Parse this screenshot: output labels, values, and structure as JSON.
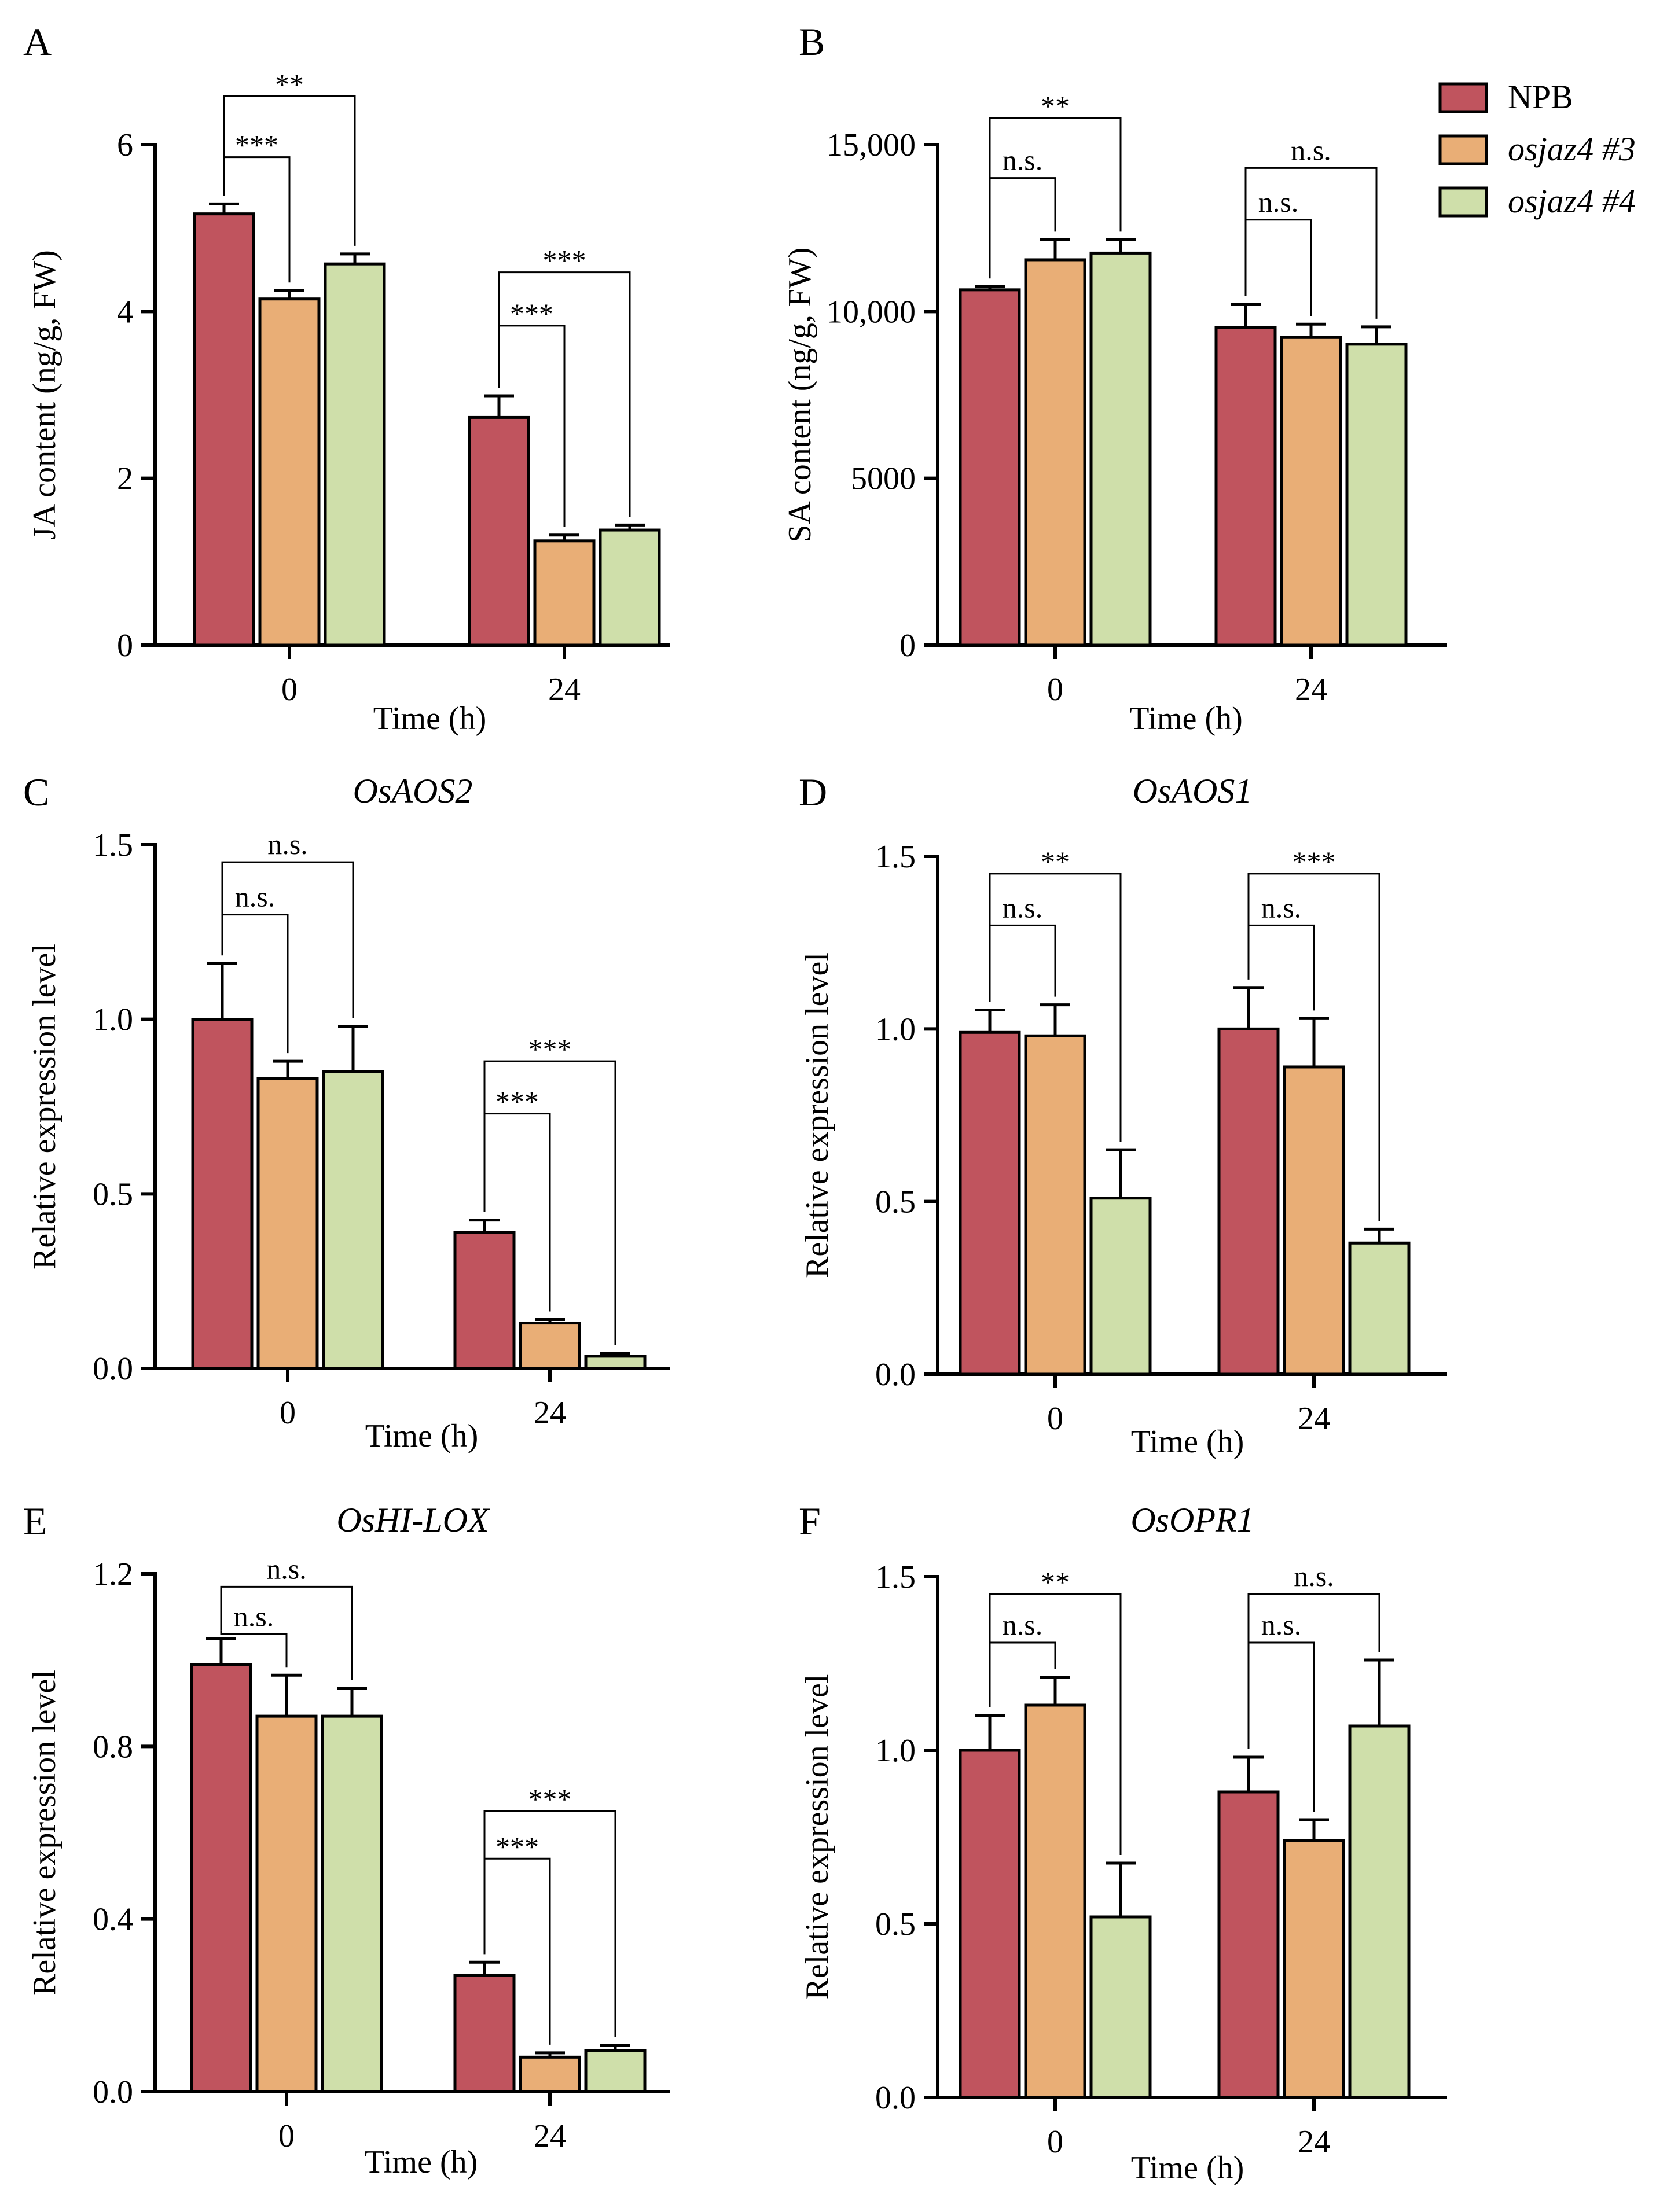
{
  "colors": {
    "NPB": "#c0545e",
    "osjaz4 #3": "#e9ae76",
    "osjaz4 #4": "#cfdfaa",
    "axis": "#000000"
  },
  "legend": {
    "items": [
      {
        "label": "NPB",
        "italic": false
      },
      {
        "label": "osjaz4 #3",
        "italic": true
      },
      {
        "label": "osjaz4 #4",
        "italic": true
      }
    ]
  },
  "chart_data": [
    {
      "panel": "A",
      "type": "bar",
      "title": "",
      "xlabel": "Time (h)",
      "ylabel": "JA content (ng/g, FW)",
      "ylim": [
        0,
        6
      ],
      "yticks": [
        "0",
        "2",
        "4",
        "6"
      ],
      "ytick_values": [
        0,
        2,
        4,
        6
      ],
      "categories": [
        "0",
        "24"
      ],
      "series": [
        {
          "name": "NPB",
          "values": [
            5.17,
            2.73
          ],
          "errors": [
            0.12,
            0.26
          ]
        },
        {
          "name": "osjaz4 #3",
          "values": [
            4.15,
            1.25
          ],
          "errors": [
            0.1,
            0.07
          ]
        },
        {
          "name": "osjaz4 #4",
          "values": [
            4.57,
            1.38
          ],
          "errors": [
            0.12,
            0.06
          ]
        }
      ],
      "significance": [
        {
          "group": 0,
          "target": 1,
          "label": "***",
          "level": 5.85
        },
        {
          "group": 0,
          "target": 2,
          "label": "**",
          "level": 6.58
        },
        {
          "group": 1,
          "target": 1,
          "label": "***",
          "level": 3.83
        },
        {
          "group": 1,
          "target": 2,
          "label": "***",
          "level": 4.47
        }
      ]
    },
    {
      "panel": "B",
      "type": "bar",
      "title": "",
      "xlabel": "Time (h)",
      "ylabel": "SA content (ng/g, FW)",
      "ylim": [
        0,
        15000
      ],
      "yticks": [
        "0",
        "5000",
        "10,000",
        "15,000"
      ],
      "ytick_values": [
        0,
        5000,
        10000,
        15000
      ],
      "categories": [
        "0",
        "24"
      ],
      "series": [
        {
          "name": "NPB",
          "values": [
            10650,
            9520
          ],
          "errors": [
            100,
            700
          ]
        },
        {
          "name": "osjaz4 #3",
          "values": [
            11550,
            9220
          ],
          "errors": [
            600,
            400
          ]
        },
        {
          "name": "osjaz4 #4",
          "values": [
            11750,
            9020
          ],
          "errors": [
            400,
            520
          ]
        }
      ],
      "significance": [
        {
          "group": 0,
          "target": 1,
          "label": "n.s.",
          "level": 14000
        },
        {
          "group": 0,
          "target": 2,
          "label": "**",
          "level": 15800
        },
        {
          "group": 1,
          "target": 1,
          "label": "n.s.",
          "level": 12750
        },
        {
          "group": 1,
          "target": 2,
          "label": "n.s.",
          "level": 14300
        }
      ]
    },
    {
      "panel": "C",
      "type": "bar",
      "title": "OsAOS2",
      "xlabel": "Time (h)",
      "ylabel": "Relative expression level",
      "ylim": [
        0,
        1.5
      ],
      "yticks": [
        "0.0",
        "0.5",
        "1.0",
        "1.5"
      ],
      "ytick_values": [
        0,
        0.5,
        1.0,
        1.5
      ],
      "categories": [
        "0",
        "24"
      ],
      "series": [
        {
          "name": "NPB",
          "values": [
            1.0,
            0.39
          ],
          "errors": [
            0.16,
            0.035
          ]
        },
        {
          "name": "osjaz4 #3",
          "values": [
            0.83,
            0.13
          ],
          "errors": [
            0.05,
            0.01
          ]
        },
        {
          "name": "osjaz4 #4",
          "values": [
            0.85,
            0.035
          ],
          "errors": [
            0.13,
            0.008
          ]
        }
      ],
      "significance": [
        {
          "group": 0,
          "target": 1,
          "label": "n.s.",
          "level": 1.3
        },
        {
          "group": 0,
          "target": 2,
          "label": "n.s.",
          "level": 1.45
        },
        {
          "group": 1,
          "target": 1,
          "label": "***",
          "level": 0.73
        },
        {
          "group": 1,
          "target": 2,
          "label": "***",
          "level": 0.88
        }
      ]
    },
    {
      "panel": "D",
      "type": "bar",
      "title": "OsAOS1",
      "xlabel": "Time (h)",
      "ylabel": "Relative expression level",
      "ylim": [
        0,
        1.5
      ],
      "yticks": [
        "0.0",
        "0.5",
        "1.0",
        "1.5"
      ],
      "ytick_values": [
        0,
        0.5,
        1.0,
        1.5
      ],
      "categories": [
        "0",
        "24"
      ],
      "series": [
        {
          "name": "NPB",
          "values": [
            0.99,
            1.0
          ],
          "errors": [
            0.065,
            0.12
          ]
        },
        {
          "name": "osjaz4 #3",
          "values": [
            0.98,
            0.89
          ],
          "errors": [
            0.09,
            0.14
          ]
        },
        {
          "name": "osjaz4 #4",
          "values": [
            0.51,
            0.38
          ],
          "errors": [
            0.14,
            0.04
          ]
        }
      ],
      "significance": [
        {
          "group": 0,
          "target": 1,
          "label": "n.s.",
          "level": 1.3
        },
        {
          "group": 0,
          "target": 2,
          "label": "**",
          "level": 1.45
        },
        {
          "group": 1,
          "target": 1,
          "label": "n.s.",
          "level": 1.3
        },
        {
          "group": 1,
          "target": 2,
          "label": "***",
          "level": 1.45
        }
      ]
    },
    {
      "panel": "E",
      "type": "bar",
      "title": "OsHI-LOX",
      "xlabel": "Time (h)",
      "ylabel": "Relative expression level",
      "ylim": [
        0,
        1.2
      ],
      "yticks": [
        "0.0",
        "0.4",
        "0.8",
        "1.2"
      ],
      "ytick_values": [
        0,
        0.4,
        0.8,
        1.2
      ],
      "categories": [
        "0",
        "24"
      ],
      "series": [
        {
          "name": "NPB",
          "values": [
            0.99,
            0.27
          ],
          "errors": [
            0.06,
            0.03
          ]
        },
        {
          "name": "osjaz4 #3",
          "values": [
            0.87,
            0.08
          ],
          "errors": [
            0.095,
            0.01
          ]
        },
        {
          "name": "osjaz4 #4",
          "values": [
            0.87,
            0.095
          ],
          "errors": [
            0.065,
            0.013
          ]
        }
      ],
      "significance": [
        {
          "group": 0,
          "target": 1,
          "label": "n.s.",
          "level": 1.06
        },
        {
          "group": 0,
          "target": 2,
          "label": "n.s.",
          "level": 1.17
        },
        {
          "group": 1,
          "target": 1,
          "label": "***",
          "level": 0.54
        },
        {
          "group": 1,
          "target": 2,
          "label": "***",
          "level": 0.65
        }
      ]
    },
    {
      "panel": "F",
      "type": "bar",
      "title": "OsOPR1",
      "xlabel": "Time (h)",
      "ylabel": "Relative expression level",
      "ylim": [
        0,
        1.5
      ],
      "yticks": [
        "0.0",
        "0.5",
        "1.0",
        "1.5"
      ],
      "ytick_values": [
        0,
        0.5,
        1.0,
        1.5
      ],
      "categories": [
        "0",
        "24"
      ],
      "series": [
        {
          "name": "NPB",
          "values": [
            1.0,
            0.88
          ],
          "errors": [
            0.1,
            0.1
          ]
        },
        {
          "name": "osjaz4 #3",
          "values": [
            1.13,
            0.74
          ],
          "errors": [
            0.08,
            0.06
          ]
        },
        {
          "name": "osjaz4 #4",
          "values": [
            0.52,
            1.07
          ],
          "errors": [
            0.155,
            0.19
          ]
        }
      ],
      "significance": [
        {
          "group": 0,
          "target": 1,
          "label": "n.s.",
          "level": 1.31
        },
        {
          "group": 0,
          "target": 2,
          "label": "**",
          "level": 1.45
        },
        {
          "group": 1,
          "target": 1,
          "label": "n.s.",
          "level": 1.31
        },
        {
          "group": 1,
          "target": 2,
          "label": "n.s.",
          "level": 1.45
        }
      ]
    }
  ]
}
